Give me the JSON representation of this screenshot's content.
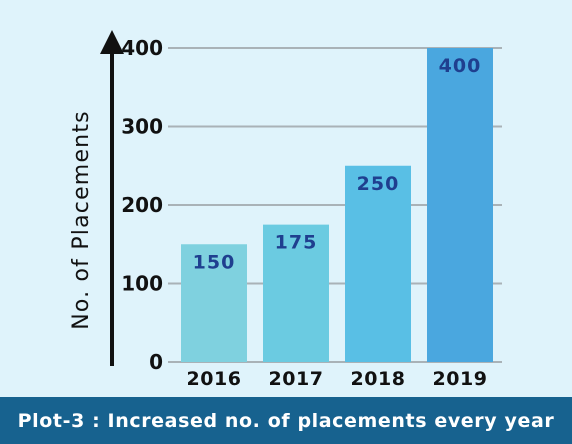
{
  "caption": "Plot-3 : Increased no. of placements every year",
  "chart_data": {
    "type": "bar",
    "categories": [
      "2016",
      "2017",
      "2018",
      "2019"
    ],
    "values": [
      150,
      175,
      250,
      400
    ],
    "data_labels": [
      "150",
      "175",
      "250",
      "400"
    ],
    "title": "",
    "xlabel": "",
    "ylabel": "No. of Placements",
    "ylim": [
      0,
      400
    ],
    "yticks": [
      0,
      100,
      200,
      300,
      400
    ],
    "grid": true,
    "bar_colors": [
      "#7fd1df",
      "#6bcbe1",
      "#59bfe5",
      "#4aa7df"
    ],
    "data_label_color": "#1f3f8f",
    "grid_color": "#a9b2b7",
    "axis_color": "#111111"
  }
}
